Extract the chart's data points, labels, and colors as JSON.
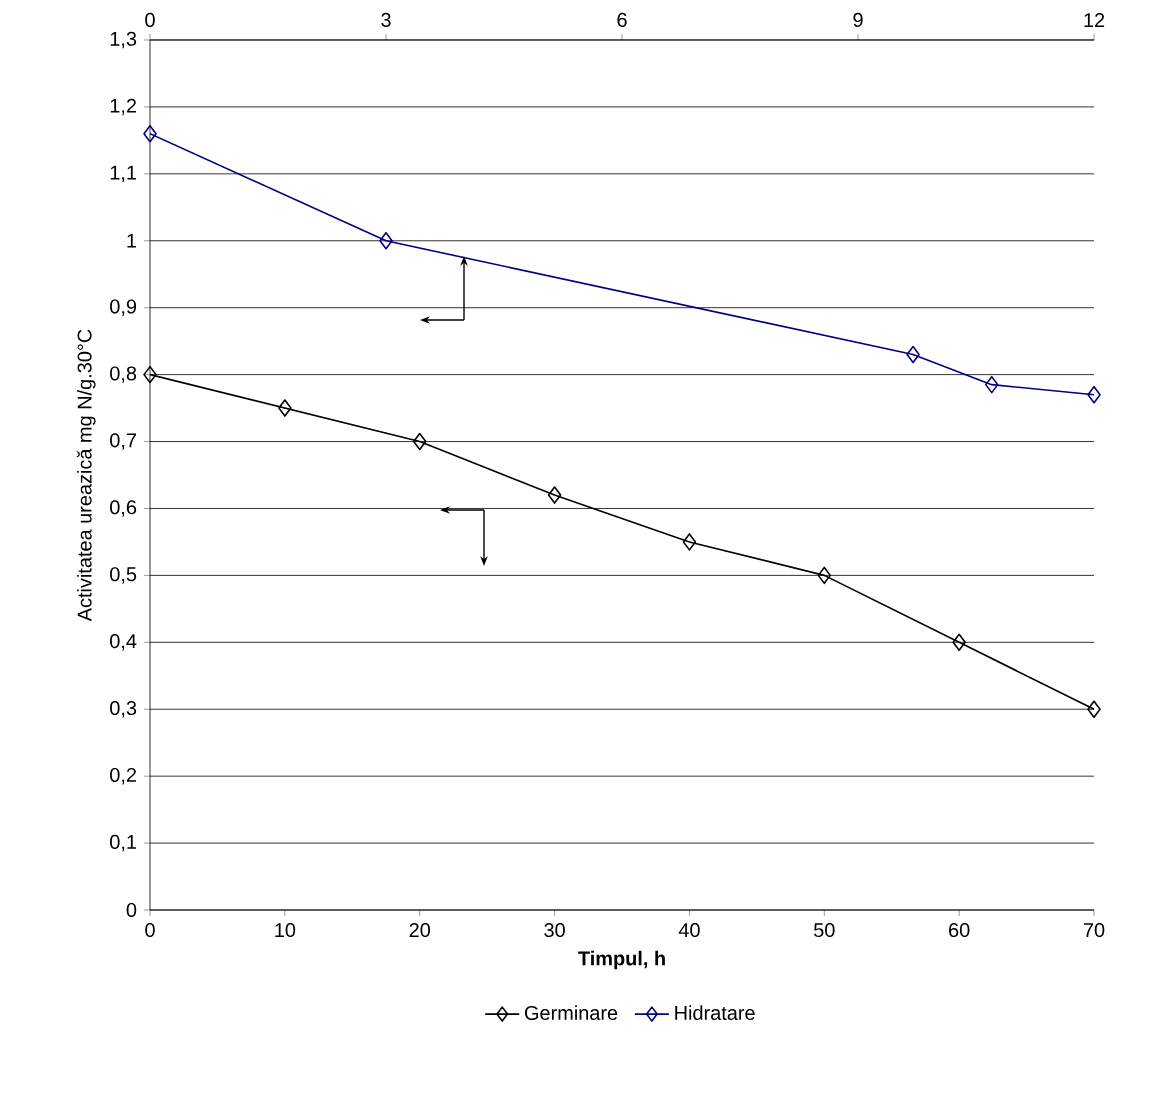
{
  "chart_data": {
    "type": "line",
    "xlabel": "Timpul, h",
    "ylabel": "Activitatea ureazică mg N/g.30°C",
    "xlim": [
      0,
      70
    ],
    "xticks": [
      0,
      10,
      20,
      30,
      40,
      50,
      60,
      70
    ],
    "x2lim": [
      0,
      12
    ],
    "x2ticks": [
      0,
      3,
      6,
      9,
      12
    ],
    "ylim": [
      0,
      1.3
    ],
    "yticks": [
      0,
      {
        "value": 0.1,
        "label": "0,1"
      },
      {
        "value": 0.2,
        "label": "0,2"
      },
      {
        "value": 0.3,
        "label": "0,3"
      },
      {
        "value": 0.4,
        "label": "0,4"
      },
      {
        "value": 0.5,
        "label": "0,5"
      },
      {
        "value": 0.6,
        "label": "0,6"
      },
      {
        "value": 0.7,
        "label": "0,7"
      },
      {
        "value": 0.8,
        "label": "0,8"
      },
      {
        "value": 0.9,
        "label": "0,9"
      },
      1,
      {
        "value": 1.1,
        "label": "1,1"
      },
      {
        "value": 1.2,
        "label": "1,2"
      },
      {
        "value": 1.3,
        "label": "1,3"
      }
    ],
    "grid": "y",
    "legend": "bottom",
    "marker": "diamond",
    "line_style": "solid",
    "series": [
      {
        "name": "Germinare",
        "color": "#000000",
        "x": [
          0,
          10,
          20,
          30,
          40,
          50,
          60,
          70
        ],
        "values": [
          0.8,
          0.75,
          0.7,
          0.62,
          0.55,
          0.5,
          0.4,
          0.3
        ]
      },
      {
        "name": "Hidratare",
        "color": "#000080",
        "axis": "x2",
        "x": [
          0,
          3,
          9.7,
          10.7,
          12
        ],
        "values": [
          1.16,
          1.0,
          0.83,
          0.785,
          0.77
        ]
      }
    ]
  }
}
